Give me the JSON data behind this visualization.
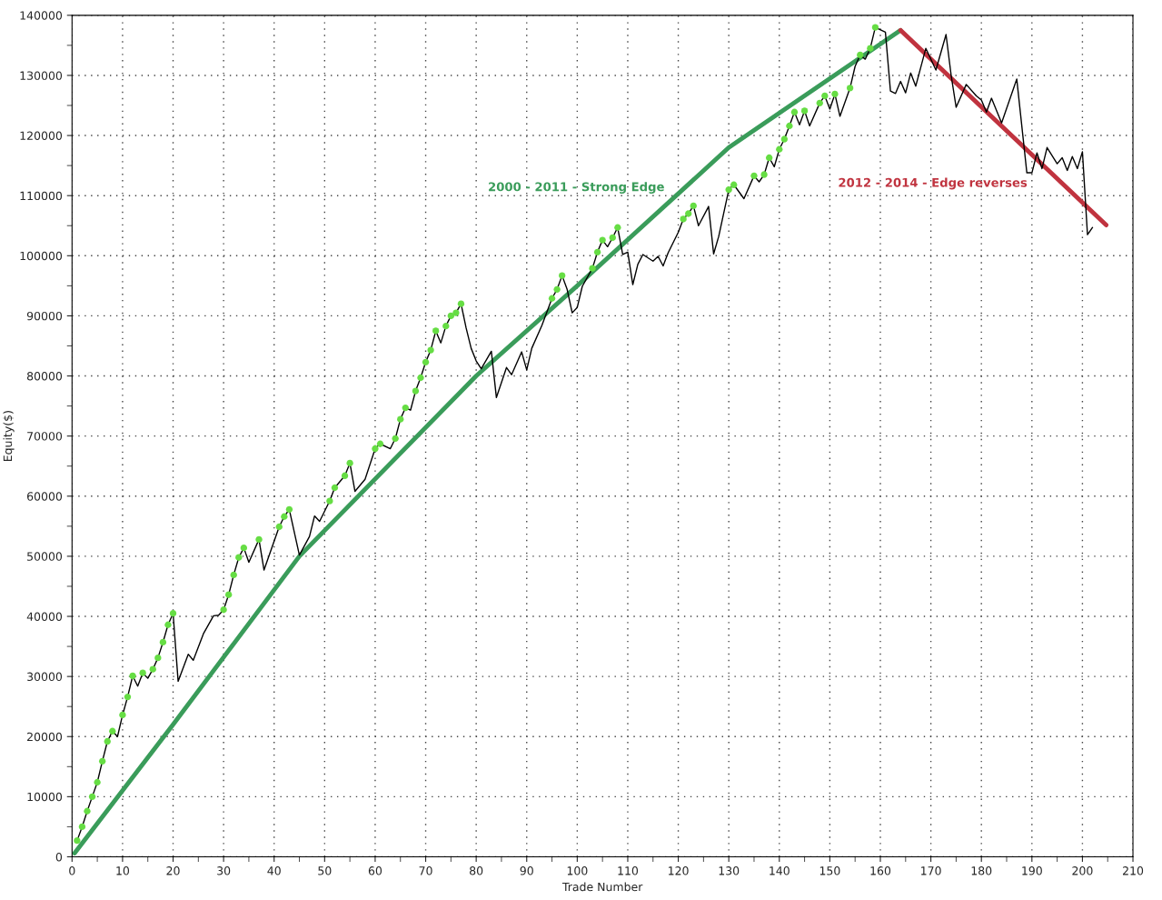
{
  "chart_data": {
    "type": "line",
    "xlabel": "Trade Number",
    "ylabel": "Equity($)",
    "xlim": [
      0,
      210
    ],
    "xticks": [
      0,
      10,
      20,
      30,
      40,
      50,
      60,
      70,
      80,
      90,
      100,
      110,
      120,
      130,
      140,
      150,
      160,
      170,
      180,
      190,
      200,
      210
    ],
    "ylim": [
      0,
      140000
    ],
    "yticks": [
      0,
      10000,
      20000,
      30000,
      40000,
      50000,
      60000,
      70000,
      80000,
      90000,
      100000,
      110000,
      120000,
      130000,
      140000
    ],
    "grid": true,
    "legend": false,
    "series": [
      {
        "color": "#000000",
        "x": [
          1,
          2,
          3,
          4,
          5,
          6,
          7,
          8,
          9,
          10,
          11,
          12,
          13,
          14,
          15,
          16,
          17,
          18,
          19,
          20,
          21,
          23,
          24,
          26,
          28,
          29,
          30,
          31,
          32,
          33,
          34,
          35,
          37,
          38,
          41,
          42,
          43,
          45,
          47,
          48,
          49,
          51,
          52,
          54,
          55,
          56,
          58,
          60,
          61,
          63,
          64,
          65,
          66,
          67,
          68,
          69,
          70,
          71,
          72,
          73,
          74,
          75,
          76,
          77,
          78,
          79,
          80,
          81,
          83,
          84,
          86,
          87,
          89,
          90,
          91,
          93,
          95,
          96,
          97,
          98,
          99,
          100,
          101,
          103,
          104,
          105,
          106,
          107,
          108,
          109,
          110,
          111,
          112,
          113,
          115,
          116,
          117,
          118,
          120,
          121,
          122,
          123,
          124,
          126,
          127,
          128,
          130,
          131,
          133,
          135,
          136,
          137,
          138,
          139,
          140,
          141,
          142,
          143,
          144,
          145,
          146,
          148,
          149,
          150,
          151,
          152,
          154,
          155,
          156,
          157,
          158,
          159,
          161,
          162,
          163,
          164,
          165,
          166,
          167,
          169,
          171,
          173,
          174,
          175,
          177,
          179,
          180,
          181,
          182,
          184,
          187,
          189,
          190,
          191,
          192,
          193,
          195,
          196,
          197,
          198,
          199,
          200,
          201,
          202
        ],
        "values": [
          2700,
          5000,
          7600,
          10000,
          12400,
          15900,
          19200,
          20900,
          20000,
          23600,
          26600,
          30100,
          28400,
          30600,
          29700,
          31200,
          33100,
          35700,
          38600,
          40500,
          29200,
          33700,
          32700,
          37100,
          40100,
          40200,
          41100,
          43600,
          46900,
          49800,
          51400,
          49000,
          52800,
          47700,
          54900,
          56600,
          57800,
          50200,
          53300,
          56700,
          55800,
          59200,
          61400,
          63400,
          65500,
          60800,
          62800,
          67900,
          68700,
          67900,
          69600,
          72800,
          74700,
          74300,
          77500,
          79700,
          82300,
          84300,
          87500,
          85500,
          88300,
          90000,
          90500,
          92000,
          88000,
          84600,
          82500,
          81200,
          84100,
          76400,
          81400,
          80200,
          84000,
          81000,
          84600,
          88400,
          92900,
          94400,
          96700,
          94400,
          90500,
          91400,
          94900,
          97900,
          100600,
          102600,
          101500,
          103000,
          104700,
          100200,
          100600,
          95200,
          98600,
          100200,
          99100,
          99900,
          98300,
          100500,
          103900,
          106100,
          107000,
          108300,
          105000,
          108200,
          100300,
          103200,
          111000,
          111800,
          109500,
          113300,
          112300,
          113500,
          116300,
          114800,
          117700,
          119400,
          121600,
          123900,
          121800,
          124100,
          121600,
          125400,
          126600,
          124400,
          126900,
          123200,
          127900,
          131500,
          133400,
          132700,
          134500,
          138000,
          137200,
          127400,
          127000,
          129000,
          127100,
          130400,
          128200,
          134500,
          130900,
          136800,
          130100,
          124700,
          128500,
          126600,
          125900,
          123900,
          126200,
          122100,
          129400,
          113800,
          113800,
          117100,
          114500,
          118000,
          115300,
          116300,
          114200,
          116500,
          114500,
          117300,
          103500,
          104700
        ]
      },
      {
        "type": "scatter",
        "color": "#66dd44",
        "marker": "circle",
        "x": [
          1,
          2,
          3,
          4,
          5,
          6,
          7,
          8,
          10,
          11,
          12,
          14,
          16,
          17,
          18,
          19,
          20,
          30,
          31,
          32,
          33,
          34,
          37,
          41,
          42,
          43,
          51,
          52,
          54,
          55,
          60,
          61,
          64,
          65,
          66,
          68,
          69,
          70,
          71,
          72,
          74,
          75,
          76,
          77,
          95,
          96,
          97,
          103,
          104,
          105,
          107,
          108,
          121,
          122,
          123,
          130,
          131,
          135,
          137,
          138,
          140,
          141,
          142,
          143,
          145,
          148,
          149,
          151,
          154,
          156,
          158,
          159
        ],
        "values": [
          2700,
          5000,
          7600,
          10000,
          12400,
          15900,
          19200,
          20900,
          23600,
          26600,
          30100,
          30600,
          31200,
          33100,
          35700,
          38600,
          40500,
          41100,
          43600,
          46900,
          49800,
          51400,
          52800,
          54900,
          56600,
          57800,
          59200,
          61400,
          63400,
          65500,
          67900,
          68700,
          69600,
          72800,
          74700,
          77500,
          79700,
          82300,
          84300,
          87500,
          88300,
          90000,
          90500,
          92000,
          92900,
          94400,
          96700,
          97900,
          100600,
          102600,
          103000,
          104700,
          106100,
          107000,
          108300,
          111000,
          111800,
          113300,
          113500,
          116300,
          117700,
          119400,
          121600,
          123900,
          124100,
          125400,
          126600,
          126900,
          127900,
          133400,
          134500,
          138000
        ]
      },
      {
        "color": "#3a9c5a",
        "x": [
          0.5,
          20,
          45,
          80,
          100,
          130,
          164
        ],
        "values": [
          600,
          22000,
          50000,
          80000,
          95000,
          118000,
          137500
        ]
      },
      {
        "color": "#c0333f",
        "x": [
          164,
          204.7
        ],
        "values": [
          137500,
          105100
        ]
      }
    ],
    "annotations": [
      "2000 - 2011 - Strong Edge",
      "2012 - 2014 - Edge reverses"
    ]
  }
}
